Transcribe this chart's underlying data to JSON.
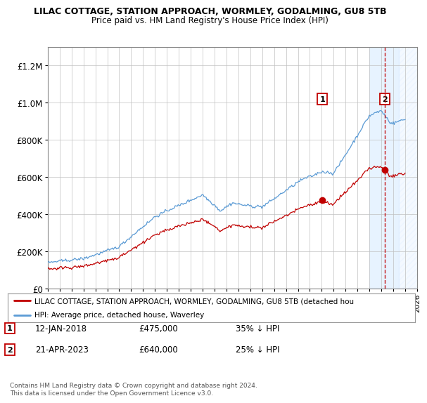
{
  "title": "LILAC COTTAGE, STATION APPROACH, WORMLEY, GODALMING, GU8 5TB",
  "subtitle": "Price paid vs. HM Land Registry's House Price Index (HPI)",
  "hpi_color": "#5b9bd5",
  "price_color": "#c00000",
  "background_color": "#ffffff",
  "grid_color": "#c0c0c0",
  "sale1_date": "12-JAN-2018",
  "sale1_price": 475000,
  "sale1_pct": "35% ↓ HPI",
  "sale2_date": "21-APR-2023",
  "sale2_price": 640000,
  "sale2_pct": "25% ↓ HPI",
  "legend_line1": "LILAC COTTAGE, STATION APPROACH, WORMLEY, GODALMING, GU8 5TB (detached hou",
  "legend_line2": "HPI: Average price, detached house, Waverley",
  "footer": "Contains HM Land Registry data © Crown copyright and database right 2024.\nThis data is licensed under the Open Government Licence v3.0.",
  "ylim": [
    0,
    1300000
  ],
  "yticks": [
    0,
    200000,
    400000,
    600000,
    800000,
    1000000,
    1200000
  ],
  "sale1_x_year": 2018.04,
  "sale2_x_year": 2023.29,
  "shade_start": 2022.0,
  "hatch_start": 2024.5,
  "xmin": 1995,
  "xmax": 2026
}
